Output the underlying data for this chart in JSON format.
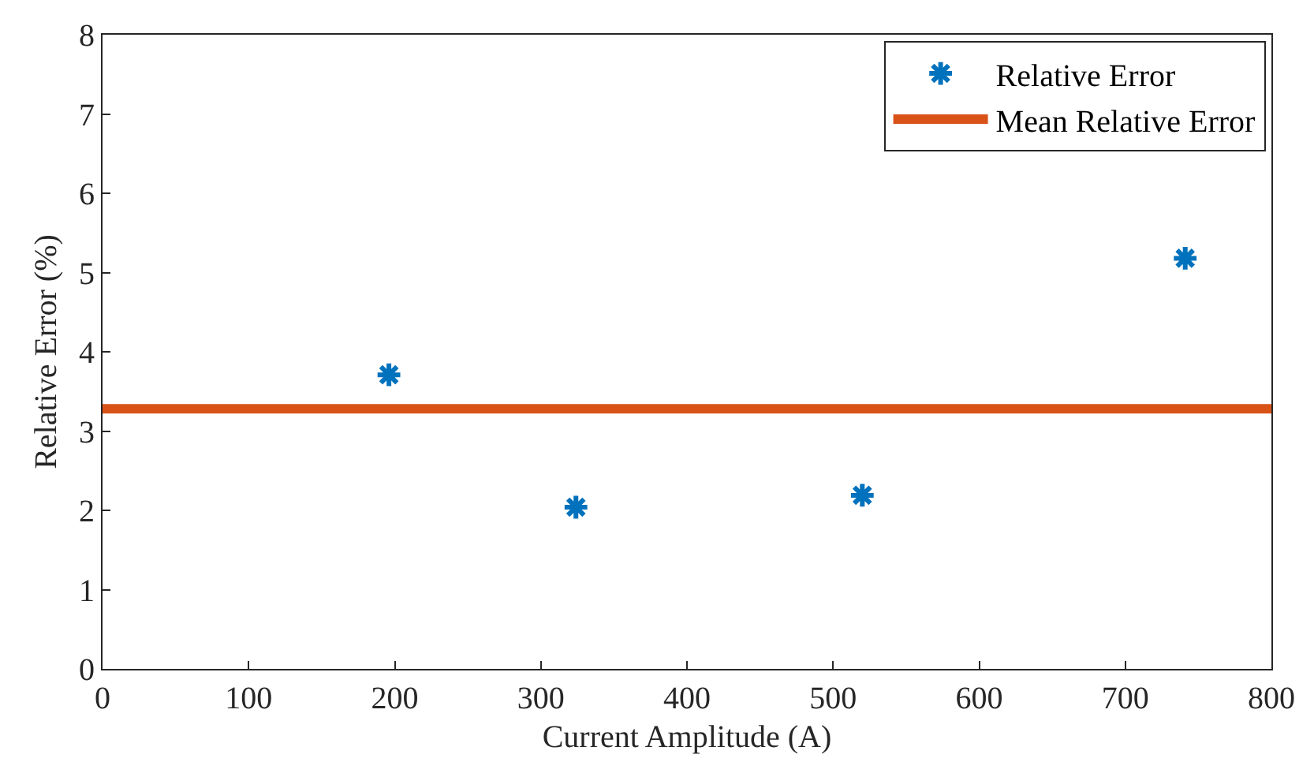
{
  "chart_data": {
    "type": "scatter",
    "xlabel": "Current Amplitude (A)",
    "ylabel": "Relative Error (%)",
    "series": [
      {
        "name": "Relative Error",
        "color": "#0072bd",
        "marker": "cross",
        "x": [
          196,
          324,
          520,
          741
        ],
        "values": [
          3.71,
          2.04,
          2.19,
          5.18
        ]
      },
      {
        "name": "Mean Relative Error",
        "type": "line",
        "color": "#d95319",
        "marker": "none",
        "x": [
          0,
          800
        ],
        "values": [
          3.28,
          3.28
        ]
      }
    ],
    "xlim": [
      0,
      800
    ],
    "xticks": [
      0,
      100,
      200,
      300,
      400,
      500,
      600,
      700,
      800
    ],
    "ylim": [
      0,
      8
    ],
    "yticks": [
      0,
      1,
      2,
      3,
      4,
      5,
      6,
      7,
      8
    ],
    "legend": "top right"
  }
}
